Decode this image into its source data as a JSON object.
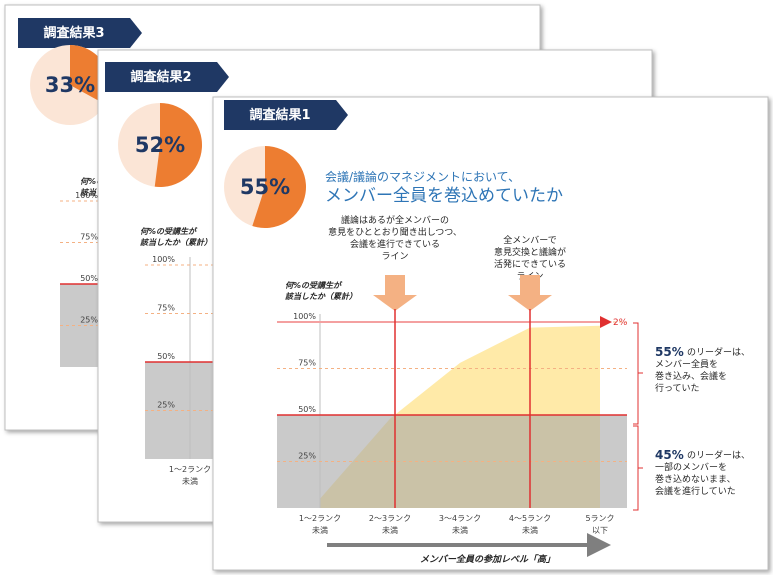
{
  "slides": [
    {
      "tab": "調査結果1",
      "pie": {
        "value": 55,
        "label": "55%"
      },
      "title": [
        "会議/議論のマネジメントにおいて、",
        "メンバー全員を巻込めていたか"
      ],
      "annotations": [
        "議論はあるが全メンバーの\n意見をひととおり聞き出しつつ、\n会議を進行できている\nライン",
        "全メンバーで\n意見交換と議論が\n活発にできている\nライン"
      ],
      "chart": {
        "type": "area",
        "y_label": "何%の受講生が\n該当したか（累計）",
        "ylim": [
          0,
          100
        ],
        "yticks": [
          {
            "value": 100,
            "label": "100%"
          },
          {
            "value": 75,
            "label": "75%"
          },
          {
            "value": 50,
            "label": "50%"
          },
          {
            "value": 25,
            "label": "25%"
          }
        ],
        "categories": [
          "1〜2ランク\n未満",
          "2〜3ランク\n未満",
          "3〜4ランク\n未満",
          "4〜5ランク\n未満",
          "5ランク\n以下"
        ],
        "values": [
          5,
          48,
          78,
          97,
          98
        ],
        "color": "#ffe699",
        "x_label": "メンバー全員の参加レベル「高」",
        "end_label": "2%"
      },
      "notes": [
        {
          "highlight": "55%",
          "text": "のリーダーは、\nメンバー全員を\n巻き込み、会議を\n行っていた"
        },
        {
          "highlight": "45%",
          "text": "のリーダーは、\n一部のメンバーを\n巻き込めないまま、\n会議を進行していた"
        }
      ]
    },
    {
      "tab": "調査結果2",
      "pie": {
        "value": 52,
        "label": "52%"
      },
      "chart": {
        "y_label": "何%の受講生が\n該当したか（累計）",
        "ylim": [
          0,
          100
        ],
        "yticks": [
          {
            "value": 100,
            "label": "100%"
          },
          {
            "value": 75,
            "label": "75%"
          },
          {
            "value": 50,
            "label": "50%"
          },
          {
            "value": 25,
            "label": "25%"
          }
        ],
        "categories": [
          "1〜2ランク\n未満"
        ]
      }
    },
    {
      "tab": "調査結果3",
      "pie": {
        "value": 33,
        "label": "33%"
      },
      "chart": {
        "y_label": "何%の受講生が\n該当したか",
        "ylim": [
          0,
          100
        ],
        "yticks": [
          {
            "value": 100,
            "label": "100%"
          },
          {
            "value": 75,
            "label": "75%"
          },
          {
            "value": 50,
            "label": "50%"
          },
          {
            "value": 25,
            "label": "25%"
          }
        ]
      }
    }
  ]
}
